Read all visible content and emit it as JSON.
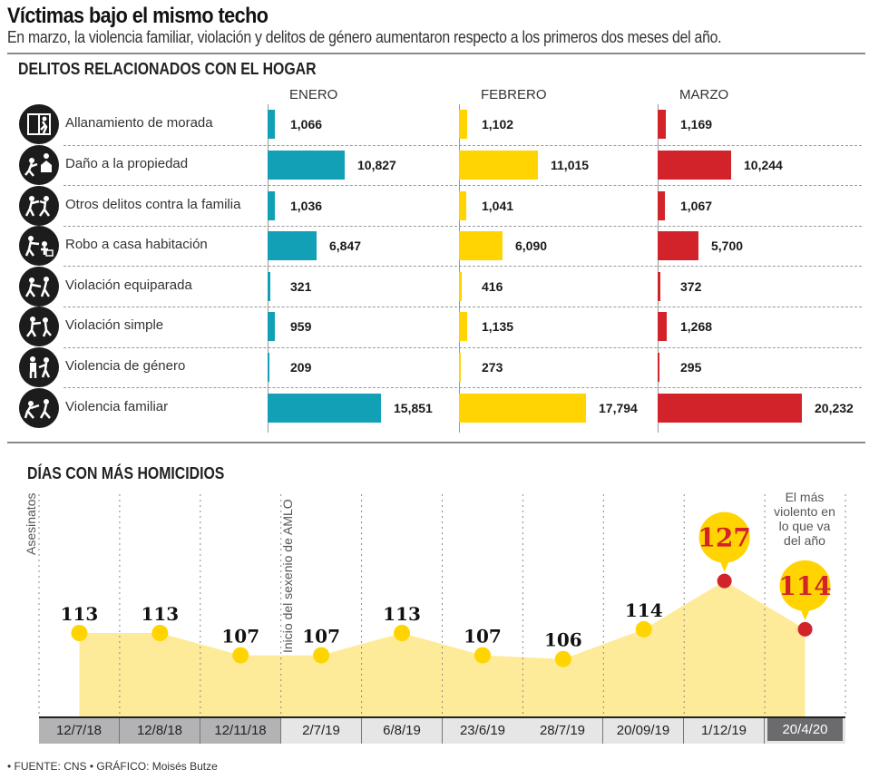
{
  "header": {
    "title": "Víctimas bajo el mismo techo",
    "subtitle": "En marzo, la violencia familiar, violación y delitos de género aumentaron respecto a los primeros dos meses del año."
  },
  "colors": {
    "enero": "#12a0b7",
    "febrero": "#ffd400",
    "marzo": "#d2232a",
    "area_fill": "#fdeb99",
    "point_yellow": "#ffd400",
    "point_red": "#d2232a",
    "date_dark": "#b3b3b5",
    "date_light": "#e6e6e6",
    "date_highlight": "#6b6b6d"
  },
  "chart_data": [
    {
      "type": "bar",
      "title": "DELITOS RELACIONADOS CON EL HOGAR",
      "categories": [
        "Allanamiento de morada",
        "Daño a la propiedad",
        "Otros delitos contra la familia",
        "Robo a casa habitación",
        "Violación equiparada",
        "Violación simple",
        "Violencia de género",
        "Violencia familiar"
      ],
      "category_icons": [
        "burglar-window-icon",
        "property-damage-icon",
        "family-assault-icon",
        "house-robbery-icon",
        "rape-equated-icon",
        "rape-simple-icon",
        "gender-violence-icon",
        "domestic-violence-icon"
      ],
      "series": [
        {
          "name": "ENERO",
          "values": [
            1066,
            10827,
            1036,
            6847,
            321,
            959,
            209,
            15851
          ],
          "labels": [
            "1,066",
            "10,827",
            "1,036",
            "6,847",
            "321",
            "959",
            "209",
            "15,851"
          ]
        },
        {
          "name": "FEBRERO",
          "values": [
            1102,
            11015,
            1041,
            6090,
            416,
            1135,
            273,
            17794
          ],
          "labels": [
            "1,102",
            "11,015",
            "1,041",
            "6,090",
            "416",
            "1,135",
            "273",
            "17,794"
          ]
        },
        {
          "name": "MARZO",
          "values": [
            1169,
            10244,
            1067,
            5700,
            372,
            1268,
            295,
            20232
          ],
          "labels": [
            "1,169",
            "10,244",
            "1,067",
            "5,700",
            "372",
            "1,268",
            "295",
            "20,232"
          ]
        }
      ],
      "orientation": "horizontal",
      "xlim": [
        0,
        20232
      ]
    },
    {
      "type": "area",
      "title": "DÍAS CON MÁS HOMICIDIOS",
      "ylabel": "Asesinatos",
      "x": [
        "12/7/18",
        "12/8/18",
        "12/11/18",
        "2/7/19",
        "6/8/19",
        "23/6/19",
        "28/7/19",
        "20/09/19",
        "1/12/19",
        "20/4/20"
      ],
      "values": [
        113,
        113,
        107,
        107,
        113,
        107,
        106,
        114,
        127,
        114
      ],
      "highlighted": [
        false,
        false,
        false,
        false,
        false,
        false,
        false,
        false,
        true,
        true
      ],
      "annotations": [
        {
          "text": "Inicio del sexenio de AMLO",
          "between": [
            "12/11/18",
            "2/7/19"
          ]
        },
        {
          "text": "El más violento en lo que va del año",
          "at": "20/4/20"
        }
      ],
      "date_group": [
        "dark",
        "dark",
        "dark",
        "light",
        "light",
        "light",
        "light",
        "light",
        "light",
        "highlight"
      ],
      "ylim": [
        100,
        130
      ]
    }
  ],
  "footer": "• FUENTE: CNS  • GRÁFICO: Moisés Butze"
}
